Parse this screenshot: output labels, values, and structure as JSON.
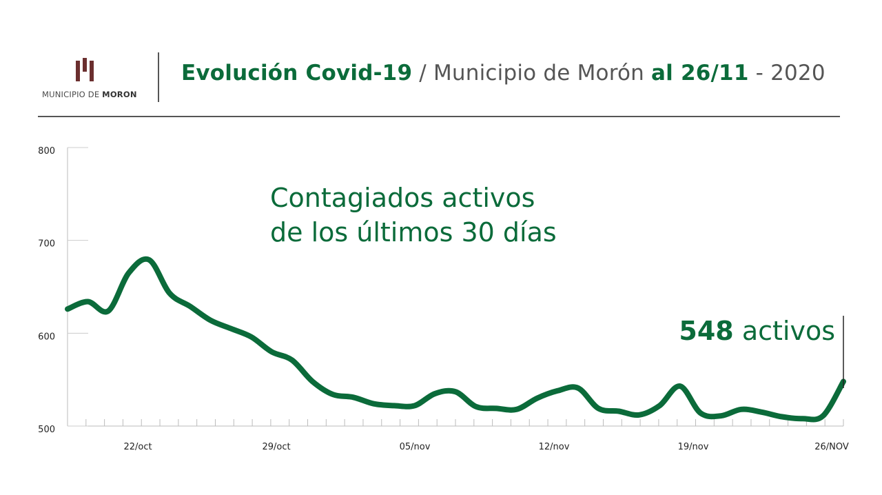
{
  "header": {
    "logo_text_regular": "MUNICIPIO DE ",
    "logo_text_bold": "MORON",
    "title_part1": "Evolución Covid-19",
    "title_part2": " / Municipio de Morón ",
    "title_part3": "al 26/11",
    "title_part4": " - 2020"
  },
  "chart_data": {
    "type": "line",
    "title_line1": "Contagiados activos",
    "title_line2": "de los últimos 30 días",
    "annotation_value": "548",
    "annotation_text": " activos",
    "ylim": [
      500,
      800
    ],
    "yticks": [
      "500",
      "600",
      "700",
      "800"
    ],
    "xlabels": [
      "22/oct",
      "29/oct",
      "05/nov",
      "12/nov",
      "19/nov",
      "26/NOV"
    ],
    "line_color": "#0b6b3a",
    "series": [
      {
        "values": [
          [
            0,
            626
          ],
          [
            1,
            634
          ],
          [
            2,
            624
          ],
          [
            3,
            665
          ],
          [
            4,
            679
          ],
          [
            5,
            643
          ],
          [
            6,
            629
          ],
          [
            7,
            614
          ],
          [
            8,
            605
          ],
          [
            9,
            596
          ],
          [
            10,
            580
          ],
          [
            11,
            571
          ],
          [
            12,
            548
          ],
          [
            13,
            534
          ],
          [
            14,
            531
          ],
          [
            15,
            524
          ],
          [
            16,
            522
          ],
          [
            17,
            522
          ],
          [
            18,
            535
          ],
          [
            19,
            537
          ],
          [
            20,
            521
          ],
          [
            21,
            519
          ],
          [
            22,
            518
          ],
          [
            23,
            530
          ],
          [
            24,
            538
          ],
          [
            25,
            541
          ],
          [
            26,
            519
          ],
          [
            27,
            516
          ],
          [
            28,
            512
          ],
          [
            29,
            522
          ],
          [
            30,
            543
          ],
          [
            31,
            514
          ],
          [
            32,
            511
          ],
          [
            33,
            518
          ],
          [
            34,
            515
          ],
          [
            35,
            510
          ],
          [
            36,
            508
          ],
          [
            37,
            511
          ],
          [
            38,
            548
          ]
        ]
      }
    ]
  }
}
